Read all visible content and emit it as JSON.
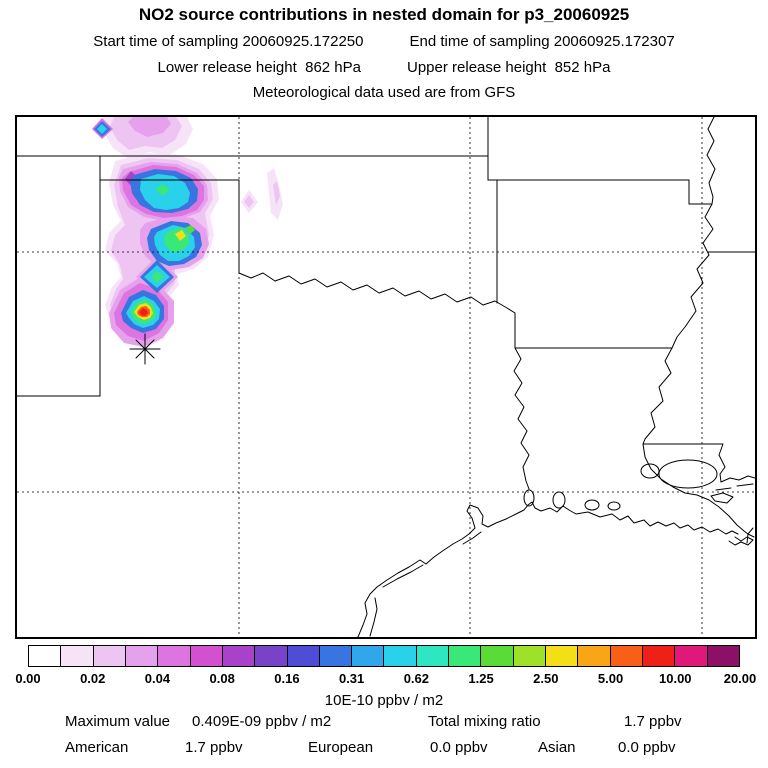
{
  "header": {
    "title": "NO2 source contributions in nested domain for p3_20060925",
    "start_time": "Start time of sampling 20060925.172250",
    "end_time": "End time of sampling 20060925.172307",
    "lower_release": "Lower release height  862 hPa",
    "upper_release": "Upper release height  852 hPa",
    "met_data": "Meteorological data used are from GFS"
  },
  "chart_data": {
    "type": "heatmap",
    "title": "NO2 source contributions in nested domain for p3_20060925",
    "subtitle_lines": [
      "Start time of sampling 20060925.172250    End time of sampling 20060925.172307",
      "Lower release height  862 hPa    Upper release height  852 hPa",
      "Meteorological data used are from GFS"
    ],
    "map_region": "South-central United States: Texas, Oklahoma, Arkansas, Louisiana and Gulf of Mexico coastline, with dashed lat/lon gridlines",
    "grid": true,
    "source_marker": {
      "symbol": "asterisk",
      "approx_location": "northwest Texas (south of Texas Panhandle)"
    },
    "plume_summary": {
      "description": "Chain of filled NO2 contribution contour blobs extending north from the asterisk source marker across the Texas Panhandle toward the Oklahoma panhandle; faint purple fuzz at outer edge, blue/cyan rings, green-yellow secondary maxima, and a red-orange core just north of the source",
      "peak_value": "0.409E-09 ppbv / m2",
      "secondary_specks": "small isolated purple diamonds east of main plume"
    },
    "colorbar": {
      "orientation": "horizontal",
      "units": "10E-10 ppbv / m2",
      "boundary_labels": [
        "0.00",
        "0.02",
        "0.04",
        "0.08",
        "0.16",
        "0.31",
        "0.62",
        "1.25",
        "2.50",
        "5.00",
        "10.00",
        "20.00"
      ],
      "cell_colors": [
        "#ffffff",
        "#f6e3f8",
        "#eec5f2",
        "#e6a1ec",
        "#de74e0",
        "#d151d1",
        "#a742c9",
        "#7842c9",
        "#4d4dd5",
        "#3975e1",
        "#30a7eb",
        "#29d1eb",
        "#2ce7c1",
        "#3ae779",
        "#59dc38",
        "#9fe029",
        "#f2df18",
        "#f8a518",
        "#f86018",
        "#ee2018",
        "#e0187a",
        "#8c1066"
      ]
    },
    "totals": {
      "maximum_value": "0.409E-09 ppbv / m2",
      "total_mixing_ratio": "1.7 ppbv",
      "american": "1.7 ppbv",
      "european": "0.0 ppbv",
      "asian": "0.0 ppbv"
    }
  },
  "colorbar_units": "10E-10 ppbv / m2",
  "footer": {
    "max_label": "Maximum value",
    "max_value": "0.409E-09 ppbv / m2",
    "mixing_label": "Total mixing ratio",
    "mixing_value": "1.7 ppbv",
    "regions": [
      {
        "name": "American",
        "value": "1.7 ppbv"
      },
      {
        "name": "European",
        "value": "0.0 ppbv"
      },
      {
        "name": "Asian",
        "value": "0.0 ppbv"
      }
    ]
  }
}
